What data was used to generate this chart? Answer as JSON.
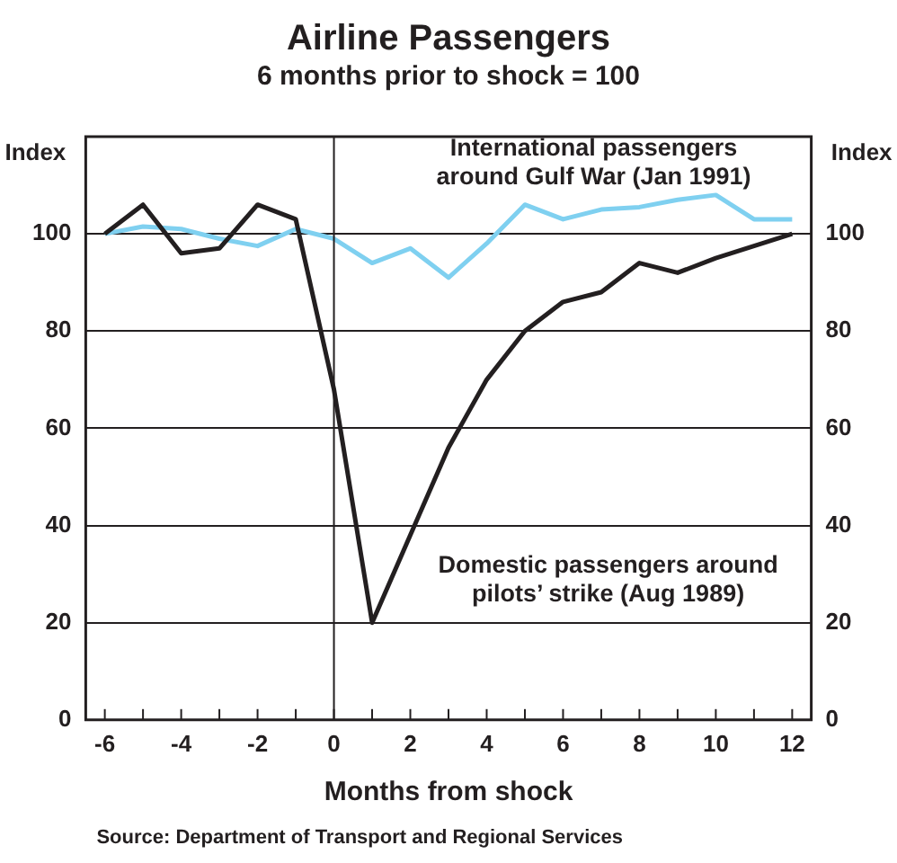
{
  "chart_data": {
    "type": "line",
    "title": "Airline Passengers",
    "subtitle": "6 months prior to shock = 100",
    "xlabel": "Months from shock",
    "ylabel": "Index",
    "y2label": "Index",
    "x": [
      -6,
      -5,
      -4,
      -3,
      -2,
      -1,
      0,
      1,
      2,
      3,
      4,
      5,
      6,
      7,
      8,
      9,
      10,
      11,
      12
    ],
    "series": [
      {
        "color": "#231f20",
        "values": [
          100,
          106,
          96,
          97,
          106,
          103,
          68,
          20,
          38,
          56,
          70,
          80,
          86,
          88,
          94,
          92,
          95,
          97.5,
          100
        ]
      },
      {
        "color": "#7fd0f0",
        "values": [
          100,
          101.5,
          101,
          99,
          97.5,
          101,
          99,
          94,
          97,
          91,
          98,
          106,
          103,
          105,
          105.5,
          107,
          108,
          103,
          103
        ]
      }
    ],
    "xlim": [
      -6.5,
      12.5
    ],
    "xticks": [
      -6,
      -4,
      -2,
      0,
      2,
      4,
      6,
      8,
      10,
      12
    ],
    "ylim": [
      0,
      120
    ],
    "yticks": [
      0,
      20,
      40,
      60,
      80,
      100
    ],
    "y2lim": [
      0,
      120
    ],
    "y2ticks": [
      0,
      20,
      40,
      60,
      80,
      100
    ],
    "grid": "y",
    "legend": false,
    "marker": "none",
    "line_style": "solid",
    "ref_lines": [
      {
        "axis": "x",
        "value": 0
      }
    ],
    "annotations": [
      "International passengers\naround Gulf War (Jan 1991)",
      "Domestic passengers around\npilots’ strike (Aug 1989)",
      "Source: Department of Transport and Regional Services"
    ]
  }
}
